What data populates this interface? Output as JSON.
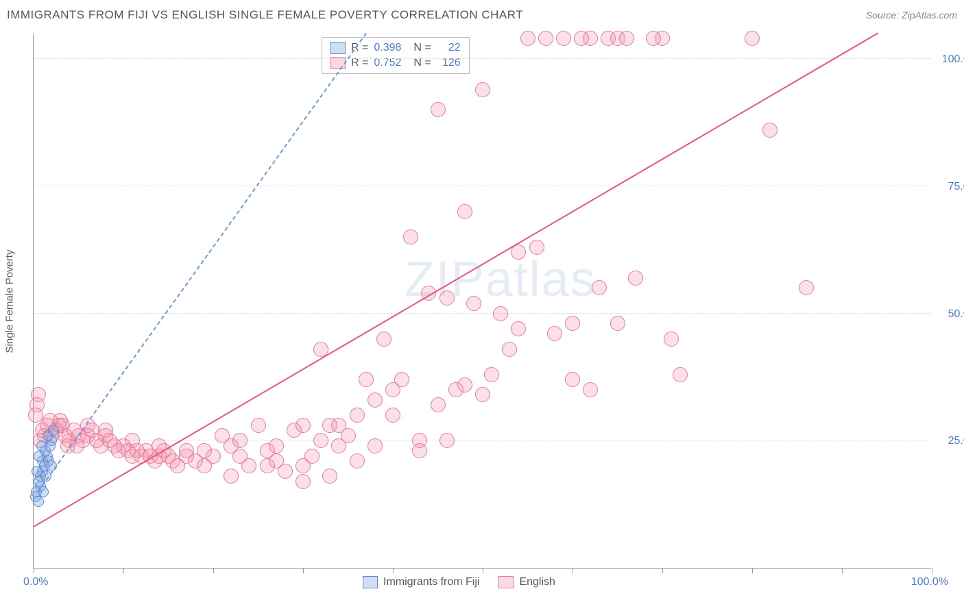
{
  "header": {
    "title": "IMMIGRANTS FROM FIJI VS ENGLISH SINGLE FEMALE POVERTY CORRELATION CHART",
    "source": "Source: ZipAtlas.com"
  },
  "watermark": "ZIPatlas",
  "chart": {
    "type": "scatter",
    "yaxis_title": "Single Female Poverty",
    "xlim": [
      0,
      100
    ],
    "ylim": [
      0,
      105
    ],
    "xticks_pct": [
      0,
      10,
      20,
      30,
      40,
      50,
      60,
      70,
      80,
      90,
      100
    ],
    "yticks": [
      {
        "v": 25,
        "label": "25.0%"
      },
      {
        "v": 50,
        "label": "50.0%"
      },
      {
        "v": 75,
        "label": "75.0%"
      },
      {
        "v": 100,
        "label": "100.0%"
      }
    ],
    "xlabel_min": "0.0%",
    "xlabel_max": "100.0%",
    "marker_blue": {
      "size": 16,
      "fill": "rgba(120,160,220,0.35)",
      "stroke": "#5a8ad4"
    },
    "marker_pink": {
      "size": 22,
      "fill": "rgba(240,130,160,0.25)",
      "stroke": "#ea7aa0"
    },
    "series_blue": {
      "name": "Immigrants from Fiji",
      "points": [
        [
          0.2,
          14
        ],
        [
          0.3,
          15
        ],
        [
          0.5,
          13
        ],
        [
          0.6,
          17
        ],
        [
          0.8,
          18
        ],
        [
          1.0,
          19
        ],
        [
          1.2,
          20
        ],
        [
          1.0,
          21
        ],
        [
          1.5,
          22
        ],
        [
          1.3,
          23
        ],
        [
          1.8,
          24
        ],
        [
          2.0,
          25
        ],
        [
          1.6,
          26
        ],
        [
          2.2,
          27
        ],
        [
          2.0,
          20
        ],
        [
          0.8,
          16
        ],
        [
          1.4,
          18
        ],
        [
          1.1,
          15
        ],
        [
          0.6,
          22
        ],
        [
          1.7,
          21
        ],
        [
          0.4,
          19
        ],
        [
          0.9,
          24
        ]
      ],
      "trend": {
        "x1": 0.5,
        "y1": 15,
        "x2": 37,
        "y2": 105,
        "dash": true,
        "color": "#6a9ad8"
      }
    },
    "series_pink": {
      "name": "English",
      "points": [
        [
          0.2,
          30
        ],
        [
          0.5,
          34
        ],
        [
          1,
          27
        ],
        [
          1.5,
          28
        ],
        [
          2,
          26
        ],
        [
          2.5,
          27
        ],
        [
          3,
          29
        ],
        [
          3.2,
          28
        ],
        [
          3.5,
          26
        ],
        [
          4,
          25
        ],
        [
          4.5,
          27
        ],
        [
          5,
          26
        ],
        [
          5.5,
          25
        ],
        [
          6,
          26
        ],
        [
          6.5,
          27
        ],
        [
          7,
          25
        ],
        [
          7.5,
          24
        ],
        [
          8,
          26
        ],
        [
          8.5,
          25
        ],
        [
          9,
          24
        ],
        [
          9.5,
          23
        ],
        [
          10,
          24
        ],
        [
          10.5,
          23
        ],
        [
          11,
          22
        ],
        [
          11.5,
          23
        ],
        [
          12,
          22
        ],
        [
          12.5,
          23
        ],
        [
          13,
          22
        ],
        [
          13.5,
          21
        ],
        [
          14,
          22
        ],
        [
          14.5,
          23
        ],
        [
          15,
          22
        ],
        [
          15.5,
          21
        ],
        [
          16,
          20
        ],
        [
          17,
          22
        ],
        [
          18,
          21
        ],
        [
          19,
          23
        ],
        [
          20,
          22
        ],
        [
          21,
          26
        ],
        [
          22,
          24
        ],
        [
          23,
          22
        ],
        [
          24,
          20
        ],
        [
          25,
          28
        ],
        [
          26,
          23
        ],
        [
          27,
          21
        ],
        [
          28,
          19
        ],
        [
          29,
          27
        ],
        [
          30,
          20
        ],
        [
          30,
          17
        ],
        [
          31,
          22
        ],
        [
          32,
          43
        ],
        [
          33,
          18
        ],
        [
          34,
          24
        ],
        [
          34,
          28
        ],
        [
          35,
          26
        ],
        [
          36,
          21
        ],
        [
          37,
          37
        ],
        [
          38,
          33
        ],
        [
          38,
          24
        ],
        [
          39,
          45
        ],
        [
          40,
          35
        ],
        [
          41,
          37
        ],
        [
          42,
          65
        ],
        [
          43,
          25
        ],
        [
          44,
          54
        ],
        [
          45,
          90
        ],
        [
          45,
          32
        ],
        [
          46,
          53
        ],
        [
          47,
          35
        ],
        [
          48,
          36
        ],
        [
          48,
          70
        ],
        [
          49,
          52
        ],
        [
          50,
          34
        ],
        [
          50,
          94
        ],
        [
          51,
          38
        ],
        [
          52,
          50
        ],
        [
          53,
          43
        ],
        [
          54,
          62
        ],
        [
          54,
          47
        ],
        [
          55,
          104
        ],
        [
          56,
          63
        ],
        [
          57,
          104
        ],
        [
          58,
          46
        ],
        [
          59,
          104
        ],
        [
          60,
          37
        ],
        [
          60,
          48
        ],
        [
          61,
          104
        ],
        [
          62,
          35
        ],
        [
          62,
          104
        ],
        [
          63,
          55
        ],
        [
          64,
          104
        ],
        [
          65,
          48
        ],
        [
          65,
          104
        ],
        [
          66,
          104
        ],
        [
          67,
          57
        ],
        [
          69,
          104
        ],
        [
          70,
          104
        ],
        [
          71,
          45
        ],
        [
          72,
          38
        ],
        [
          80,
          104
        ],
        [
          82,
          86
        ],
        [
          86,
          55
        ],
        [
          30,
          28
        ],
        [
          32,
          25
        ],
        [
          26,
          20
        ],
        [
          22,
          18
        ],
        [
          17,
          23
        ],
        [
          14,
          24
        ],
        [
          11,
          25
        ],
        [
          8,
          27
        ],
        [
          6,
          28
        ],
        [
          4.8,
          24
        ],
        [
          3.8,
          24
        ],
        [
          2.8,
          28
        ],
        [
          1.8,
          29
        ],
        [
          1.2,
          26
        ],
        [
          0.8,
          25
        ],
        [
          0.4,
          32
        ],
        [
          19,
          20
        ],
        [
          23,
          25
        ],
        [
          27,
          24
        ],
        [
          33,
          28
        ],
        [
          36,
          30
        ],
        [
          40,
          30
        ],
        [
          43,
          23
        ],
        [
          46,
          25
        ]
      ],
      "trend": {
        "x1": 0,
        "y1": 8,
        "x2": 94,
        "y2": 105,
        "dash": false,
        "color": "#e8537f"
      }
    },
    "legend_box": {
      "rows": [
        {
          "color": "blue",
          "r_label": "R =",
          "r_val": "0.398",
          "n_label": "N =",
          "n_val": "22"
        },
        {
          "color": "pink",
          "r_label": "R =",
          "r_val": "0.752",
          "n_label": "N =",
          "n_val": "126"
        }
      ]
    },
    "bottom_legend": [
      {
        "color": "blue",
        "label": "Immigrants from Fiji"
      },
      {
        "color": "pink",
        "label": "English"
      }
    ]
  }
}
